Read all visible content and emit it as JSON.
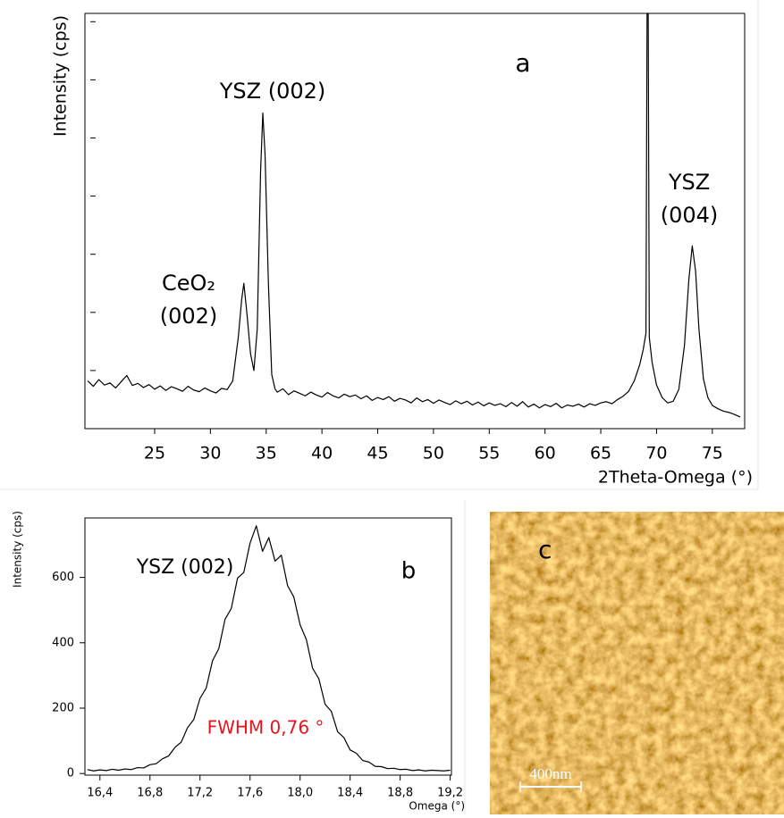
{
  "chart_data": [
    {
      "type": "line",
      "label": "a",
      "x_label": "2Theta-Omega (°)",
      "y_label": "Intensity (cps)",
      "annotations": [
        [
          "YSZ (002)"
        ],
        [
          "CeO₂",
          "(002)"
        ],
        [
          "YSZ",
          "(004)"
        ]
      ],
      "color": "#000000",
      "xlim": [
        18.75,
        77.9
      ],
      "xticks": [
        25,
        30,
        35,
        40,
        45,
        50,
        55,
        60,
        65,
        70,
        75
      ],
      "ylim": [
        0,
        100
      ],
      "yticks": [
        14,
        28,
        42,
        56,
        70,
        84,
        98
      ],
      "x": [
        19,
        19.5,
        20,
        20.5,
        21,
        21.5,
        22,
        22.5,
        23,
        23.5,
        24,
        24.5,
        25,
        25.5,
        26,
        26.5,
        27,
        27.5,
        28,
        28.5,
        29,
        29.5,
        30,
        30.5,
        31,
        31.5,
        32,
        32.5,
        32.8,
        33,
        33.3,
        33.6,
        33.9,
        34.2,
        34.5,
        34.7,
        34.9,
        35.2,
        35.5,
        35.8,
        36,
        36.5,
        37,
        37.5,
        38,
        38.5,
        39,
        39.5,
        40,
        40.5,
        41,
        41.5,
        42,
        42.5,
        43,
        43.5,
        44,
        44.5,
        45,
        45.5,
        46,
        46.5,
        47,
        47.5,
        48,
        48.5,
        49,
        49.5,
        50,
        50.5,
        51,
        51.5,
        52,
        52.5,
        53,
        53.5,
        54,
        54.5,
        55,
        55.5,
        56,
        56.5,
        57,
        57.5,
        58,
        58.5,
        59,
        59.5,
        60,
        60.5,
        61,
        61.5,
        62,
        62.5,
        63,
        63.5,
        64,
        64.5,
        65,
        65.5,
        66,
        66.5,
        67,
        67.5,
        68,
        68.5,
        68.8,
        69.05,
        69.15,
        69.25,
        69.35,
        69.6,
        70,
        70.5,
        71,
        71.5,
        72,
        72.5,
        72.9,
        73.2,
        73.5,
        73.8,
        74.2,
        74.6,
        75,
        75.5,
        76,
        76.5,
        77,
        77.5
      ],
      "values": [
        11.5,
        10.2,
        11.8,
        10.5,
        11.0,
        9.8,
        11.3,
        12.8,
        10.4,
        10.9,
        9.9,
        10.6,
        9.5,
        10.3,
        9.2,
        10.1,
        9.6,
        9.0,
        10.2,
        9.3,
        8.9,
        9.8,
        9.1,
        8.6,
        9.7,
        9.4,
        11.5,
        22,
        31,
        35,
        27,
        18,
        14,
        24,
        62,
        76,
        66,
        35,
        13,
        9.5,
        8.8,
        9.6,
        8.2,
        9.1,
        8.5,
        7.9,
        8.8,
        8.1,
        7.6,
        8.7,
        7.9,
        7.4,
        8.3,
        7.7,
        8.1,
        7.2,
        7.9,
        6.8,
        7.5,
        7.0,
        7.7,
        6.6,
        7.3,
        6.9,
        6.2,
        7.4,
        6.5,
        7.0,
        6.1,
        6.9,
        6.3,
        5.8,
        6.7,
        6.0,
        6.6,
        5.7,
        6.4,
        5.5,
        6.2,
        5.6,
        6.0,
        5.3,
        6.3,
        5.4,
        6.5,
        5.2,
        5.9,
        5.0,
        5.8,
        5.3,
        6.1,
        5.0,
        5.7,
        5.4,
        5.9,
        5.2,
        6.0,
        5.6,
        6.2,
        6.5,
        6.0,
        7.0,
        7.8,
        9.0,
        11.5,
        15.5,
        19,
        23,
        100,
        100,
        22,
        16,
        10.5,
        7.5,
        6.2,
        6.6,
        9.5,
        20,
        36,
        44,
        38,
        24,
        12,
        7.5,
        5.6,
        4.8,
        4.2,
        3.9,
        3.4,
        2.8
      ]
    },
    {
      "type": "line",
      "label": "b",
      "x_label": "Omega (°)",
      "y_label": "Intensity (cps)",
      "annotations": [
        [
          "YSZ (002)"
        ],
        [
          "FWHM 0,76 °"
        ]
      ],
      "annotation_color": "#e8141c",
      "color": "#000000",
      "xlim": [
        16.28,
        19.21
      ],
      "xticks": [
        {
          "value": 16.4,
          "label": "16,4"
        },
        {
          "value": 16.8,
          "label": "16,8"
        },
        {
          "value": 17.2,
          "label": "17,2"
        },
        {
          "value": 17.6,
          "label": "17,6"
        },
        {
          "value": 18.0,
          "label": "18,0"
        },
        {
          "value": 18.4,
          "label": "18,4"
        },
        {
          "value": 18.8,
          "label": "18,8"
        },
        {
          "value": 19.2,
          "label": "19,2"
        }
      ],
      "ylim": [
        -5,
        782
      ],
      "yticks": [
        0,
        200,
        400,
        600
      ],
      "x": [
        16.3,
        16.35,
        16.4,
        16.45,
        16.5,
        16.55,
        16.6,
        16.65,
        16.7,
        16.75,
        16.8,
        16.85,
        16.9,
        16.95,
        17.0,
        17.05,
        17.1,
        17.15,
        17.2,
        17.25,
        17.3,
        17.35,
        17.4,
        17.45,
        17.5,
        17.55,
        17.6,
        17.65,
        17.7,
        17.75,
        17.8,
        17.85,
        17.9,
        17.95,
        18.0,
        18.05,
        18.1,
        18.15,
        18.2,
        18.25,
        18.3,
        18.35,
        18.4,
        18.45,
        18.5,
        18.55,
        18.6,
        18.65,
        18.7,
        18.75,
        18.8,
        18.85,
        18.9,
        18.95,
        19.0,
        19.05,
        19.1,
        19.15,
        19.2
      ],
      "values": [
        12,
        8,
        11,
        9,
        13,
        10,
        14,
        12,
        18,
        17,
        27,
        30,
        45,
        54,
        80,
        96,
        140,
        165,
        230,
        262,
        345,
        382,
        472,
        505,
        598,
        615,
        705,
        758,
        680,
        722,
        650,
        668,
        575,
        540,
        455,
        410,
        322,
        290,
        212,
        190,
        128,
        110,
        72,
        62,
        40,
        35,
        22,
        21,
        15,
        16,
        12,
        13,
        9,
        11,
        8,
        10,
        9,
        8,
        10
      ]
    }
  ],
  "image": {
    "label": "c",
    "scale_bar": "400nm"
  }
}
